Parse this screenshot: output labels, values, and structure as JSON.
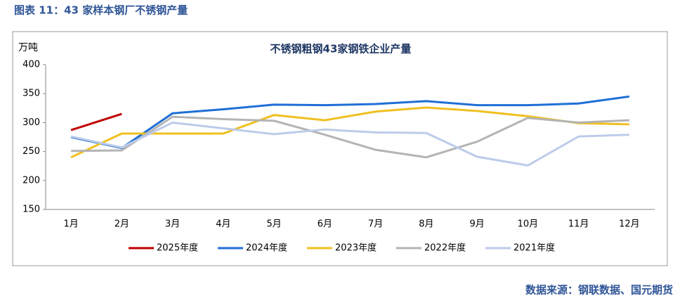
{
  "chart_data": {
    "type": "line",
    "caption": "图表 11：43 家样本钢厂不锈钢产量",
    "title": "不锈钢粗钢43家钢铁企业产量",
    "y_label": "万吨",
    "source": "数据来源：钢联数据、国元期货",
    "categories": [
      "1月",
      "2月",
      "3月",
      "4月",
      "5月",
      "6月",
      "7月",
      "8月",
      "9月",
      "10月",
      "11月",
      "12月"
    ],
    "series": [
      {
        "name": "2025年度",
        "color": "#c00000",
        "values": [
          287,
          315,
          null,
          null,
          null,
          null,
          null,
          null,
          null,
          null,
          null,
          null
        ]
      },
      {
        "name": "2024年度",
        "color": "#1f6fd6",
        "values": [
          275,
          256,
          316,
          323,
          331,
          330,
          332,
          337,
          330,
          330,
          333,
          345
        ]
      },
      {
        "name": "2023年度",
        "color": "#f0c020",
        "values": [
          240,
          281,
          281,
          281,
          313,
          304,
          319,
          326,
          320,
          311,
          299,
          297
        ]
      },
      {
        "name": "2022年度",
        "color": "#b4b4b4",
        "values": [
          251,
          252,
          310,
          306,
          303,
          279,
          253,
          240,
          267,
          308,
          300,
          304
        ]
      },
      {
        "name": "2021年度",
        "color": "#bccbe9",
        "values": [
          276,
          257,
          300,
          290,
          280,
          288,
          283,
          282,
          241,
          226,
          276,
          279
        ]
      }
    ],
    "ylim": [
      150,
      400
    ],
    "yticks": [
      150,
      200,
      250,
      300,
      350,
      400
    ],
    "grid": false,
    "legend": "bottom"
  }
}
